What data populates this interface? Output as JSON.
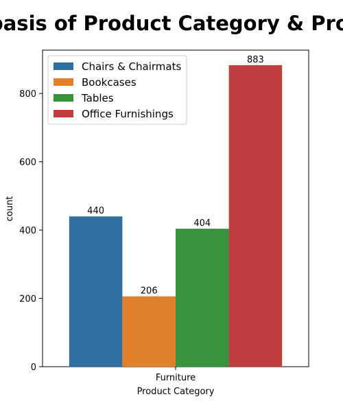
{
  "chart_data": {
    "type": "bar",
    "title": "Countplot on the basis of Product Category & Product Sub-Category",
    "xlabel": "Product Category",
    "ylabel": "count",
    "categories": [
      "Furniture"
    ],
    "series": [
      {
        "name": "Chairs & Chairmats",
        "values": [
          440
        ],
        "color": "#2f70a1"
      },
      {
        "name": "Bookcases",
        "values": [
          206
        ],
        "color": "#e1812c"
      },
      {
        "name": "Tables",
        "values": [
          404
        ],
        "color": "#3a923a"
      },
      {
        "name": "Office Furnishings",
        "values": [
          883
        ],
        "color": "#c03d3e"
      }
    ],
    "yticks": [
      "0",
      "200",
      "400",
      "600",
      "800"
    ],
    "ylim": [
      0,
      927
    ],
    "grid": false,
    "legend_position": "upper-left"
  }
}
